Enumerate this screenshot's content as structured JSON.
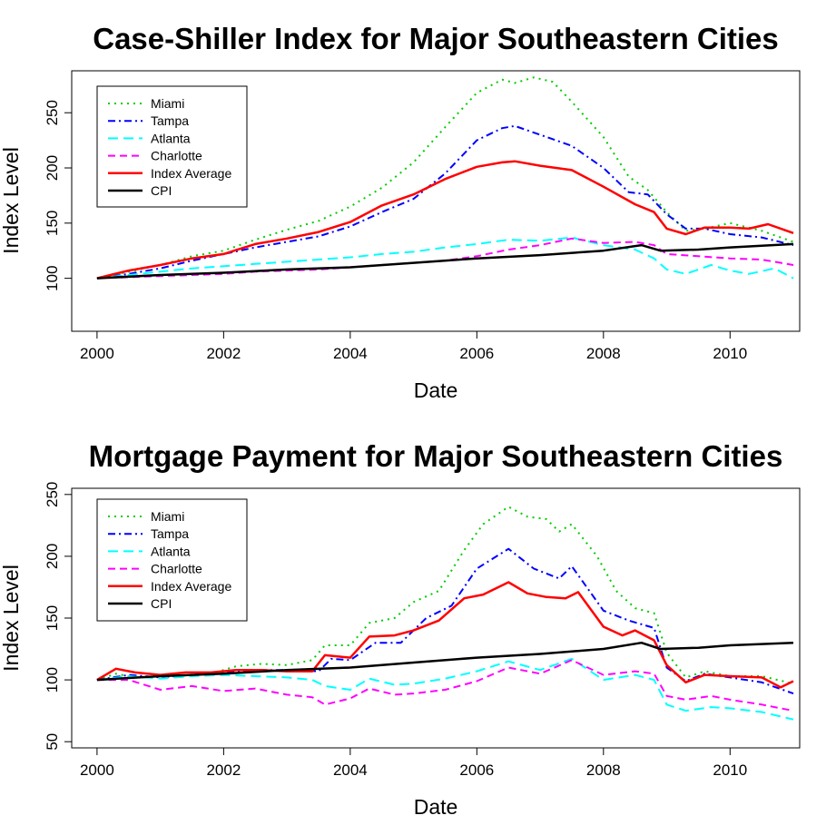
{
  "chart_data": [
    {
      "type": "line",
      "title": "Case-Shiller Index for Major Southeastern Cities",
      "xlabel": "Date",
      "ylabel": "Index Level",
      "xlim": [
        1999.6,
        2011.1
      ],
      "ylim": [
        52,
        288
      ],
      "x_ticks": [
        2000,
        2002,
        2004,
        2006,
        2008,
        2010
      ],
      "y_ticks": [
        100,
        150,
        200,
        250
      ],
      "legend_position": "top-left",
      "series": [
        {
          "name": "Miami",
          "color": "#00cd00",
          "dash": "2,5",
          "width": 2,
          "x": [
            2000.0,
            2000.5,
            2001.0,
            2001.5,
            2002.0,
            2002.5,
            2003.0,
            2003.5,
            2004.0,
            2004.5,
            2005.0,
            2005.5,
            2006.0,
            2006.4,
            2006.6,
            2006.9,
            2007.2,
            2007.5,
            2008.0,
            2008.4,
            2008.7,
            2009.0,
            2009.3,
            2009.6,
            2010.0,
            2010.5,
            2011.0
          ],
          "y": [
            100,
            106,
            112,
            120,
            125,
            135,
            144,
            152,
            165,
            182,
            205,
            237,
            268,
            280,
            277,
            282,
            278,
            260,
            228,
            192,
            180,
            160,
            143,
            145,
            150,
            143,
            133
          ]
        },
        {
          "name": "Tampa",
          "color": "#0000ff",
          "dash": "8,4,2,4",
          "width": 2,
          "x": [
            2000.0,
            2000.5,
            2001.0,
            2001.5,
            2002.0,
            2002.5,
            2003.0,
            2003.5,
            2004.0,
            2004.5,
            2005.0,
            2005.5,
            2006.0,
            2006.4,
            2006.6,
            2007.0,
            2007.5,
            2008.0,
            2008.4,
            2008.7,
            2009.0,
            2009.3,
            2009.6,
            2010.0,
            2010.5,
            2011.0
          ],
          "y": [
            100,
            104,
            109,
            116,
            122,
            128,
            133,
            138,
            147,
            160,
            172,
            195,
            225,
            236,
            238,
            230,
            220,
            200,
            178,
            176,
            158,
            145,
            145,
            140,
            137,
            130
          ]
        },
        {
          "name": "Atlanta",
          "color": "#00ffff",
          "dash": "11,6",
          "width": 2,
          "x": [
            2000.0,
            2000.5,
            2001.0,
            2001.5,
            2002.0,
            2002.5,
            2003.0,
            2003.5,
            2004.0,
            2004.5,
            2005.0,
            2005.5,
            2006.0,
            2006.5,
            2007.0,
            2007.5,
            2008.0,
            2008.5,
            2008.8,
            2009.0,
            2009.3,
            2009.7,
            2010.0,
            2010.3,
            2010.7,
            2011.0
          ],
          "y": [
            100,
            103,
            106,
            109,
            111,
            113,
            115,
            117,
            119,
            122,
            124,
            128,
            131,
            135,
            134,
            137,
            130,
            126,
            118,
            108,
            104,
            112,
            107,
            104,
            109,
            100
          ]
        },
        {
          "name": "Charlotte",
          "color": "#ff00ff",
          "dash": "8,5",
          "width": 2,
          "x": [
            2000.0,
            2000.5,
            2001.0,
            2001.5,
            2002.0,
            2002.5,
            2003.0,
            2003.5,
            2004.0,
            2004.5,
            2005.0,
            2005.5,
            2006.0,
            2006.5,
            2007.0,
            2007.5,
            2008.0,
            2008.5,
            2008.8,
            2009.0,
            2009.5,
            2010.0,
            2010.5,
            2011.0
          ],
          "y": [
            100,
            101,
            102,
            103,
            104,
            106,
            107,
            108,
            110,
            112,
            114,
            116,
            120,
            126,
            130,
            136,
            132,
            133,
            130,
            122,
            120,
            118,
            117,
            112
          ]
        },
        {
          "name": "Index Average",
          "color": "#ff0000",
          "dash": "",
          "width": 2.5,
          "x": [
            2000.0,
            2000.5,
            2001.0,
            2001.5,
            2002.0,
            2002.5,
            2003.0,
            2003.5,
            2004.0,
            2004.5,
            2005.0,
            2005.5,
            2006.0,
            2006.4,
            2006.6,
            2007.0,
            2007.5,
            2008.0,
            2008.5,
            2008.8,
            2009.0,
            2009.3,
            2009.6,
            2010.0,
            2010.3,
            2010.6,
            2011.0
          ],
          "y": [
            100,
            107,
            112,
            118,
            122,
            131,
            136,
            142,
            151,
            166,
            176,
            190,
            201,
            205,
            206,
            202,
            198,
            183,
            167,
            160,
            145,
            140,
            146,
            146,
            145,
            149,
            141
          ]
        },
        {
          "name": "CPI",
          "color": "#000000",
          "dash": "",
          "width": 2.5,
          "x": [
            2000.0,
            2001.0,
            2002.0,
            2003.0,
            2004.0,
            2005.0,
            2006.0,
            2007.0,
            2008.0,
            2008.6,
            2008.9,
            2009.5,
            2010.0,
            2011.0
          ],
          "y": [
            100,
            103,
            105,
            108,
            110,
            114,
            118,
            121,
            125,
            130,
            125,
            126,
            128,
            131
          ]
        }
      ]
    },
    {
      "type": "line",
      "title": "Mortgage Payment for Major Southeastern Cities",
      "xlabel": "Date",
      "ylabel": "Index Level",
      "xlim": [
        1999.6,
        2011.1
      ],
      "ylim": [
        45,
        255
      ],
      "x_ticks": [
        2000,
        2002,
        2004,
        2006,
        2008,
        2010
      ],
      "y_ticks": [
        50,
        100,
        150,
        200,
        250
      ],
      "legend_position": "top-left",
      "series": [
        {
          "name": "Miami",
          "color": "#00cd00",
          "dash": "2,5",
          "width": 2,
          "x": [
            2000.0,
            2000.3,
            2000.6,
            2001.0,
            2001.4,
            2001.8,
            2002.2,
            2002.6,
            2003.0,
            2003.4,
            2003.6,
            2004.0,
            2004.3,
            2004.7,
            2005.0,
            2005.4,
            2005.8,
            2006.1,
            2006.5,
            2006.8,
            2007.1,
            2007.3,
            2007.5,
            2007.9,
            2008.2,
            2008.5,
            2008.8,
            2009.0,
            2009.3,
            2009.6,
            2010.0,
            2010.5,
            2011.0
          ],
          "y": [
            100,
            105,
            102,
            103,
            106,
            105,
            111,
            113,
            112,
            116,
            128,
            128,
            146,
            150,
            163,
            172,
            205,
            226,
            240,
            232,
            230,
            220,
            226,
            200,
            172,
            158,
            154,
            122,
            102,
            107,
            103,
            103,
            97
          ]
        },
        {
          "name": "Tampa",
          "color": "#0000ff",
          "dash": "8,4,2,4",
          "width": 2,
          "x": [
            2000.0,
            2000.5,
            2001.0,
            2001.5,
            2002.0,
            2002.5,
            2003.0,
            2003.5,
            2003.7,
            2004.0,
            2004.4,
            2004.8,
            2005.2,
            2005.6,
            2006.0,
            2006.5,
            2006.9,
            2007.3,
            2007.5,
            2008.0,
            2008.4,
            2008.8,
            2009.0,
            2009.3,
            2009.6,
            2010.0,
            2010.5,
            2011.0
          ],
          "y": [
            100,
            104,
            102,
            104,
            106,
            108,
            108,
            107,
            117,
            116,
            130,
            130,
            150,
            160,
            190,
            206,
            190,
            182,
            192,
            156,
            148,
            142,
            110,
            99,
            105,
            102,
            98,
            89
          ]
        },
        {
          "name": "Atlanta",
          "color": "#00ffff",
          "dash": "11,6",
          "width": 2,
          "x": [
            2000.0,
            2000.5,
            2001.0,
            2001.5,
            2002.0,
            2002.5,
            2003.0,
            2003.4,
            2003.6,
            2004.0,
            2004.3,
            2004.7,
            2005.0,
            2005.5,
            2006.0,
            2006.5,
            2007.0,
            2007.5,
            2008.0,
            2008.5,
            2008.8,
            2009.0,
            2009.3,
            2009.7,
            2010.0,
            2010.5,
            2011.0
          ],
          "y": [
            100,
            103,
            101,
            103,
            104,
            103,
            102,
            100,
            95,
            92,
            101,
            96,
            97,
            101,
            107,
            115,
            108,
            117,
            100,
            104,
            100,
            80,
            75,
            78,
            77,
            74,
            68
          ]
        },
        {
          "name": "Charlotte",
          "color": "#ff00ff",
          "dash": "8,5",
          "width": 2,
          "x": [
            2000.0,
            2000.5,
            2001.0,
            2001.5,
            2002.0,
            2002.5,
            2003.0,
            2003.4,
            2003.6,
            2004.0,
            2004.3,
            2004.7,
            2005.0,
            2005.5,
            2006.0,
            2006.5,
            2007.0,
            2007.5,
            2008.0,
            2008.5,
            2008.8,
            2009.0,
            2009.3,
            2009.7,
            2010.0,
            2010.5,
            2011.0
          ],
          "y": [
            100,
            100,
            92,
            95,
            91,
            93,
            88,
            86,
            80,
            85,
            93,
            88,
            89,
            92,
            99,
            110,
            105,
            116,
            104,
            107,
            105,
            87,
            84,
            87,
            84,
            80,
            75
          ]
        },
        {
          "name": "Index Average",
          "color": "#ff0000",
          "dash": "",
          "width": 2.5,
          "x": [
            2000.0,
            2000.3,
            2000.6,
            2001.0,
            2001.4,
            2001.8,
            2002.2,
            2002.6,
            2003.0,
            2003.4,
            2003.6,
            2004.0,
            2004.3,
            2004.7,
            2005.0,
            2005.4,
            2005.8,
            2006.1,
            2006.5,
            2006.8,
            2007.1,
            2007.4,
            2007.6,
            2008.0,
            2008.3,
            2008.5,
            2008.8,
            2009.0,
            2009.3,
            2009.6,
            2010.0,
            2010.5,
            2010.8,
            2011.0
          ],
          "y": [
            100,
            109,
            106,
            104,
            106,
            106,
            108,
            108,
            107,
            107,
            120,
            118,
            135,
            136,
            140,
            148,
            166,
            169,
            179,
            170,
            167,
            166,
            171,
            143,
            136,
            140,
            132,
            112,
            98,
            104,
            103,
            102,
            94,
            99
          ]
        },
        {
          "name": "CPI",
          "color": "#000000",
          "dash": "",
          "width": 2.5,
          "x": [
            2000.0,
            2001.0,
            2002.0,
            2003.0,
            2004.0,
            2005.0,
            2006.0,
            2007.0,
            2008.0,
            2008.6,
            2008.9,
            2009.5,
            2010.0,
            2011.0
          ],
          "y": [
            100,
            103,
            105,
            108,
            110,
            114,
            118,
            121,
            125,
            130,
            125,
            126,
            128,
            130
          ]
        }
      ]
    }
  ]
}
